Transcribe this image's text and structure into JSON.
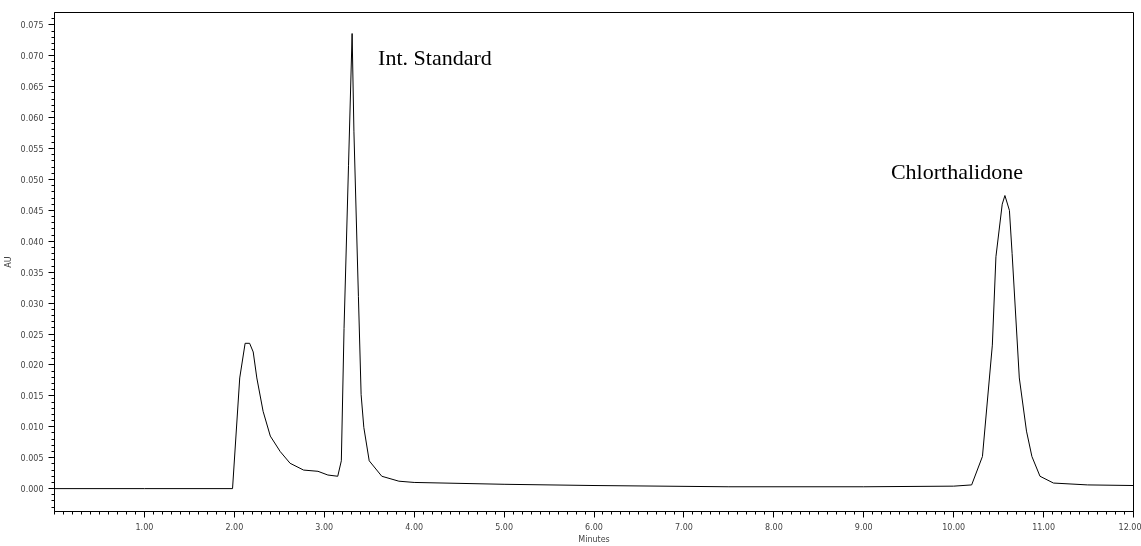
{
  "chart_data": {
    "type": "line",
    "xlabel": "Minutes",
    "ylabel": "AU",
    "xlim": [
      0,
      12
    ],
    "ylim": [
      -0.0037,
      0.077
    ],
    "xticks": [
      {
        "value": 1,
        "label": "1.00"
      },
      {
        "value": 2,
        "label": "2.00"
      },
      {
        "value": 3,
        "label": "3.00"
      },
      {
        "value": 4,
        "label": "4.00"
      },
      {
        "value": 5,
        "label": "5.00"
      },
      {
        "value": 6,
        "label": "6.00"
      },
      {
        "value": 7,
        "label": "7.00"
      },
      {
        "value": 8,
        "label": "8.00"
      },
      {
        "value": 9,
        "label": "9.00"
      },
      {
        "value": 10,
        "label": "10.00"
      },
      {
        "value": 11,
        "label": "11.00"
      },
      {
        "value": 12,
        "label": "12.00"
      }
    ],
    "yticks": [
      {
        "value": 0,
        "label": "0.000"
      },
      {
        "value": 0.005,
        "label": "0.005"
      },
      {
        "value": 0.01,
        "label": "0.010"
      },
      {
        "value": 0.015,
        "label": "0.015"
      },
      {
        "value": 0.02,
        "label": "0.020"
      },
      {
        "value": 0.025,
        "label": "0.025"
      },
      {
        "value": 0.03,
        "label": "0.030"
      },
      {
        "value": 0.035,
        "label": "0.035"
      },
      {
        "value": 0.04,
        "label": "0.040"
      },
      {
        "value": 0.045,
        "label": "0.045"
      },
      {
        "value": 0.05,
        "label": "0.050"
      },
      {
        "value": 0.055,
        "label": "0.055"
      },
      {
        "value": 0.06,
        "label": "0.060"
      },
      {
        "value": 0.065,
        "label": "0.065"
      },
      {
        "value": 0.07,
        "label": "0.070"
      },
      {
        "value": 0.075,
        "label": "0.075"
      }
    ],
    "grid": false,
    "marker": "none",
    "line_style": "solid",
    "series": [
      {
        "color": "#000000",
        "x": [
          0,
          1.0,
          1.98,
          2.06,
          2.12,
          2.17,
          2.21,
          2.25,
          2.32,
          2.4,
          2.51,
          2.62,
          2.77,
          2.93,
          3.04,
          3.15,
          3.19,
          3.22,
          3.27,
          3.31,
          3.33,
          3.38,
          3.41,
          3.44,
          3.5,
          3.64,
          3.83,
          4.0,
          5.0,
          6.0,
          7.5,
          9.0,
          10.0,
          10.2,
          10.32,
          10.43,
          10.47,
          10.54,
          10.57,
          10.62,
          10.65,
          10.73,
          10.81,
          10.87,
          10.96,
          11.11,
          11.49,
          12.0
        ],
        "values": [
          0,
          0,
          0,
          0.0179,
          0.0235,
          0.0235,
          0.0221,
          0.0179,
          0.0125,
          0.0085,
          0.006,
          0.0041,
          0.003,
          0.0028,
          0.0022,
          0.002,
          0.0045,
          0.0259,
          0.0523,
          0.0736,
          0.0577,
          0.0311,
          0.0152,
          0.0099,
          0.0045,
          0.002,
          0.0012,
          0.001,
          0.0007,
          0.0005,
          0.0003,
          0.0003,
          0.0004,
          0.0006,
          0.0052,
          0.0232,
          0.0375,
          0.046,
          0.0474,
          0.045,
          0.038,
          0.0179,
          0.0093,
          0.0052,
          0.002,
          0.0009,
          0.0006,
          0.0005
        ]
      }
    ],
    "annotations": [
      {
        "text": "Int. Standard",
        "x": 3.31,
        "y": 0.0736
      },
      {
        "text": "Chlorthalidone",
        "x": 10.57,
        "y": 0.0474
      }
    ]
  }
}
